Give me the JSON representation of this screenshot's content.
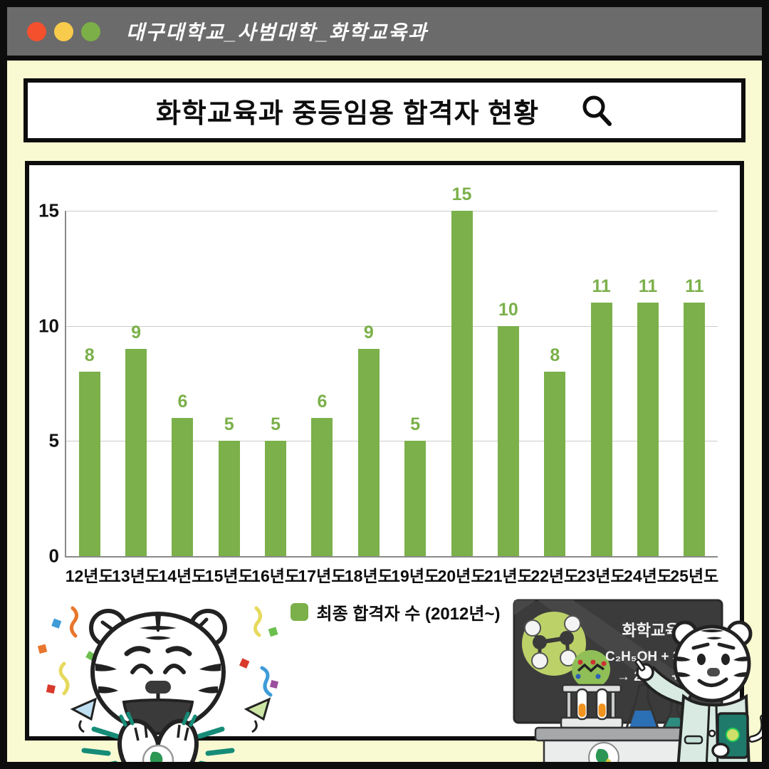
{
  "window": {
    "title": "대구대학교_사범대학_화학교육과",
    "dot_colors": [
      "#F4502E",
      "#F8CB4C",
      "#7CAF48"
    ]
  },
  "title_bar": {
    "title": "화학교육과 중등임용 합격자 현황",
    "icon": "search-magnifier"
  },
  "chart_data": {
    "type": "bar",
    "title": "화학교육과 중등임용 합격자 현황",
    "categories": [
      "12년도",
      "13년도",
      "14년도",
      "15년도",
      "16년도",
      "17년도",
      "18년도",
      "19년도",
      "20년도",
      "21년도",
      "22년도",
      "23년도",
      "24년도",
      "25년도"
    ],
    "values": [
      8,
      9,
      6,
      5,
      5,
      6,
      9,
      5,
      15,
      10,
      8,
      11,
      11,
      11
    ],
    "xlabel": "",
    "ylabel": "",
    "ylim": [
      0,
      15
    ],
    "yticks": [
      0,
      5,
      10,
      15
    ],
    "grid": true,
    "value_labels": true,
    "bar_color": "#7BB04A",
    "legend": {
      "label": "최종 합격자 수 (2012년~)",
      "position": "bottom"
    }
  },
  "illustration": {
    "chalkboard": {
      "heading": "화학교육",
      "equation_line1": "C₂H₅OH + 3O₂",
      "equation_line2": "→ 2CO₂ + 3H₂O"
    },
    "left_mascot": "celebrating-white-tiger-with-confetti",
    "right_mascot": "tiger-professor-pointing-at-chalkboard"
  },
  "colors": {
    "background": "#FAFAD2",
    "frame": "#0D0D0D",
    "titlebar_bg": "#6B6B6B",
    "card_bg": "#FFFFFF",
    "bar": "#7BB04A",
    "gridline": "#CCCCCC",
    "axis": "#8A8A8A",
    "text": "#111111",
    "teal_accent": "#168C78",
    "coat_mint": "#D8EAE2",
    "tablet_teal": "#1F7A6B"
  }
}
